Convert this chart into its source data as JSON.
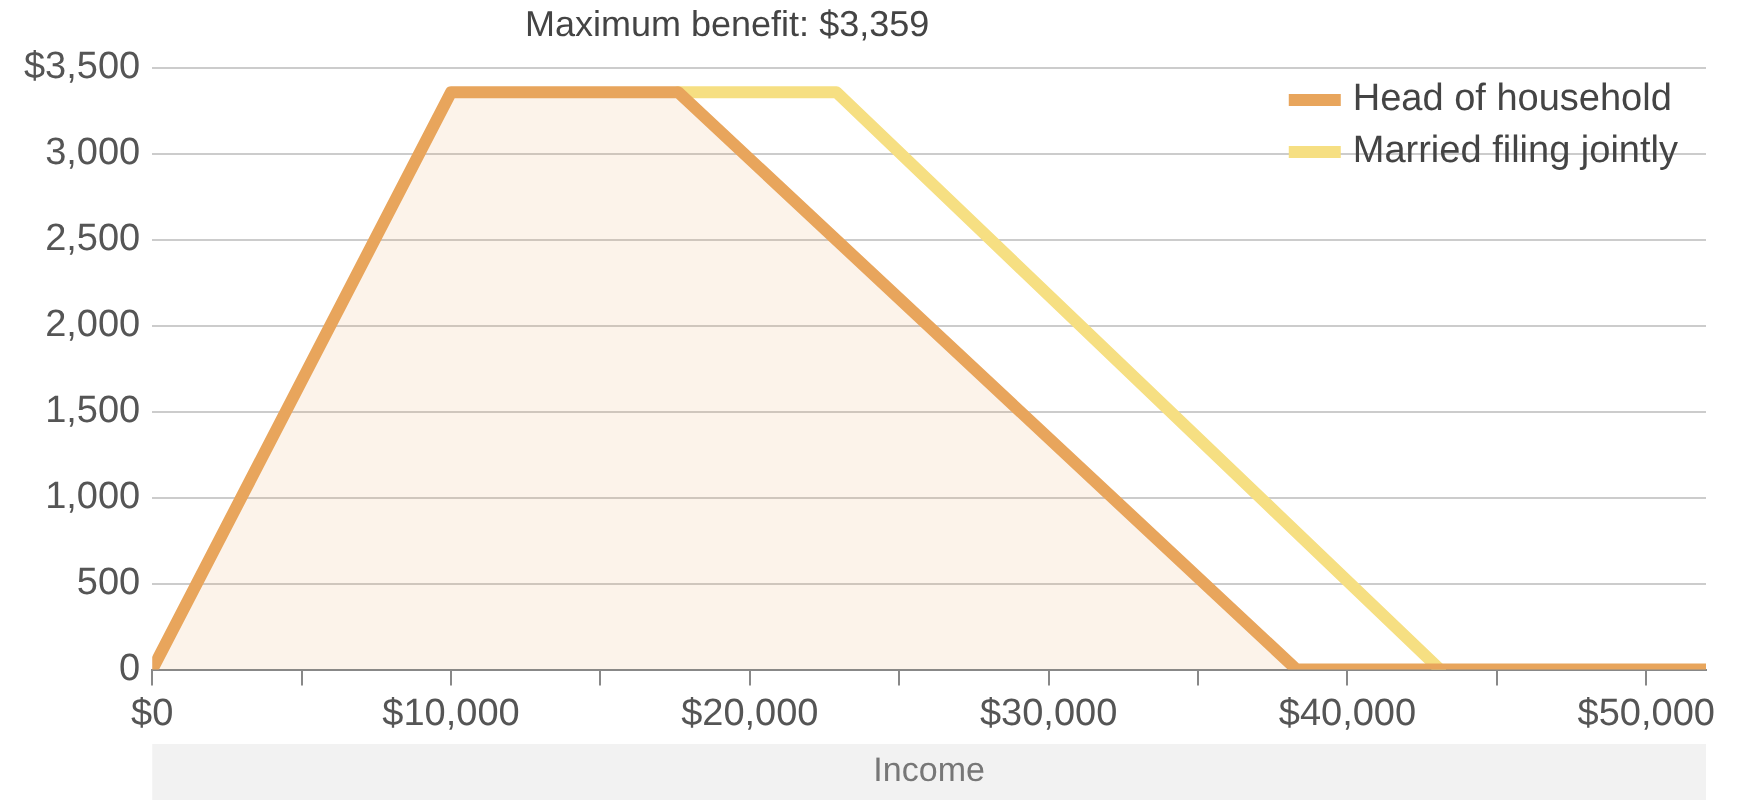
{
  "chart_data": {
    "type": "line",
    "xlabel": "Income",
    "annotations": [
      "Maximum benefit: $3,359"
    ],
    "series": [
      {
        "name": "Head of household",
        "type": "area",
        "color": "#e8a55c",
        "x": [
          0,
          10000,
          17600,
          38300,
          52000
        ],
        "values": [
          0,
          3359,
          3359,
          0,
          0
        ]
      },
      {
        "name": "Married filing jointly",
        "type": "line",
        "color": "#f6df82",
        "x": [
          17600,
          22900,
          43100
        ],
        "values": [
          3359,
          3359,
          0
        ]
      }
    ],
    "xlim": [
      0,
      52000
    ],
    "xticks": [
      {
        "value": 0,
        "label": "$0"
      },
      {
        "value": 5000,
        "label": null
      },
      {
        "value": 10000,
        "label": "$10,000"
      },
      {
        "value": 15000,
        "label": null
      },
      {
        "value": 20000,
        "label": "$20,000"
      },
      {
        "value": 25000,
        "label": null
      },
      {
        "value": 30000,
        "label": "$30,000"
      },
      {
        "value": 35000,
        "label": null
      },
      {
        "value": 40000,
        "label": "$40,000"
      },
      {
        "value": 45000,
        "label": null
      },
      {
        "value": 50000,
        "label": "$50,000"
      }
    ],
    "ylim": [
      0,
      3500
    ],
    "yticks": [
      0,
      500,
      {
        "value": 1000,
        "label": "1,000"
      },
      {
        "value": 1500,
        "label": "1,500"
      },
      {
        "value": 2000,
        "label": "2,000"
      },
      {
        "value": 2500,
        "label": "2,500"
      },
      {
        "value": 3000,
        "label": "3,000"
      },
      {
        "value": 3500,
        "label": "$3,500"
      }
    ],
    "grid": "y",
    "legend": "top right",
    "marker": "none",
    "line_style": "solid"
  }
}
